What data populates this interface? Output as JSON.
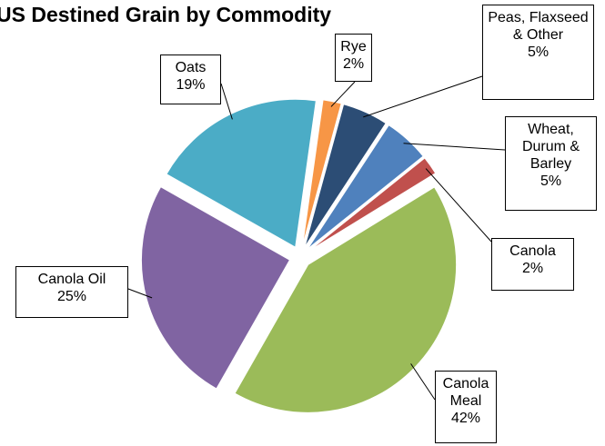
{
  "chart_data": {
    "type": "pie",
    "title": "US Destined Grain by Commodity",
    "categories": [
      "Rye",
      "Peas, Flaxseed & Other",
      "Wheat, Durum & Barley",
      "Canola",
      "Canola Meal",
      "Canola Oil",
      "Oats"
    ],
    "values": [
      2,
      5,
      5,
      2,
      42,
      25,
      19
    ],
    "value_labels": [
      "2%",
      "5%",
      "5%",
      "2%",
      "42%",
      "25%",
      "19%"
    ],
    "colors": [
      "#f79646",
      "#2c4d75",
      "#4f81bd",
      "#c0504d",
      "#9bbb59",
      "#8064a2",
      "#4bacc6"
    ]
  }
}
